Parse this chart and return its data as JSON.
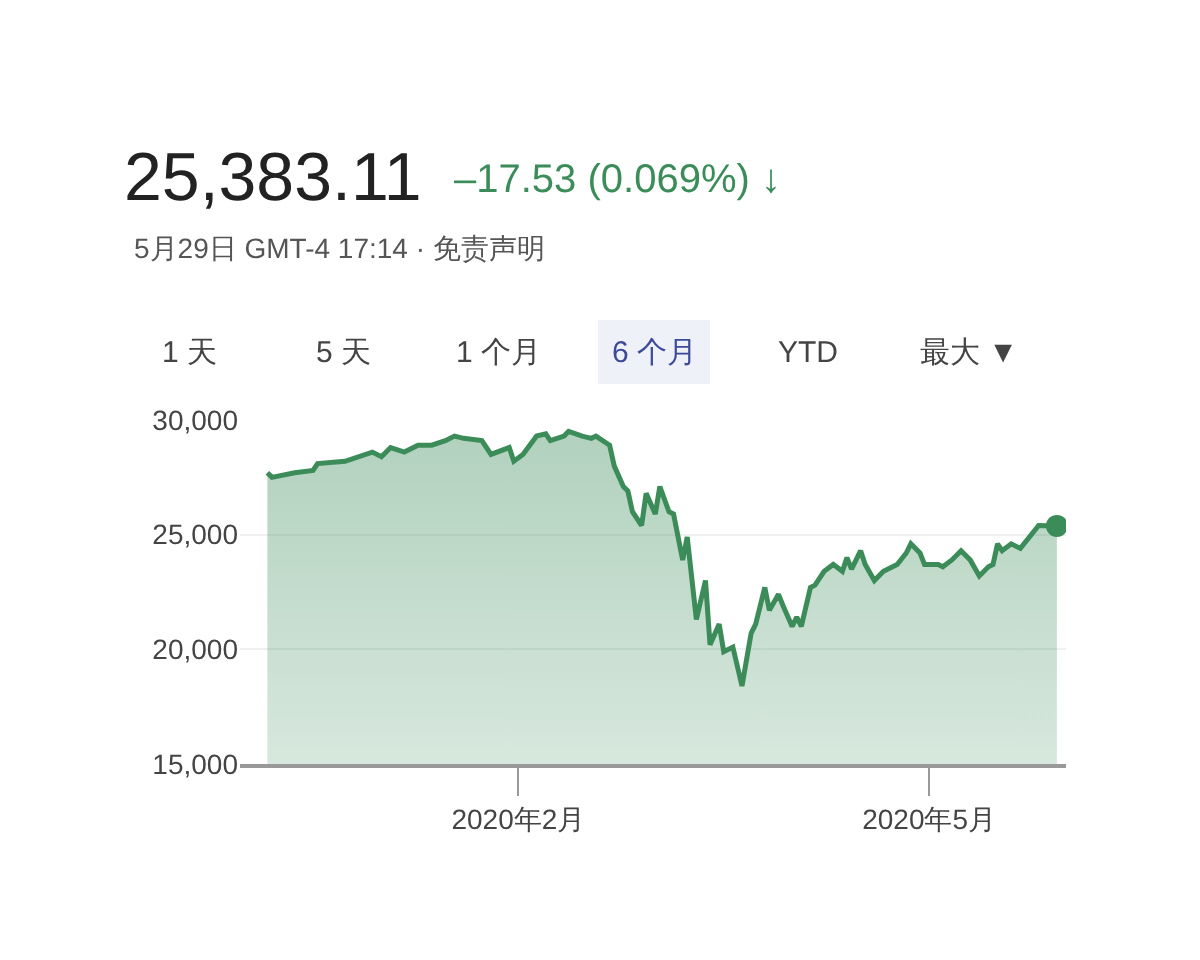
{
  "chart_data": {
    "type": "area",
    "title": "25,383.11",
    "annotations": [
      "–17.53 (0.069%) ↓",
      "5月29日 GMT-4 17:14 · 免责声明",
      "1 天",
      "5 天",
      "1 个月",
      "6 个月",
      "YTD",
      "最大 ▼"
    ],
    "x": [
      "2019-12-08",
      "2019-12-09",
      "2019-12-14",
      "2019-12-18",
      "2019-12-19",
      "2019-12-25",
      "2019-12-31",
      "2020-01-02",
      "2020-01-04",
      "2020-01-07",
      "2020-01-10",
      "2020-01-13",
      "2020-01-16",
      "2020-01-18",
      "2020-01-20",
      "2020-01-24",
      "2020-01-26",
      "2020-01-30",
      "2020-01-31",
      "2020-02-02",
      "2020-02-05",
      "2020-02-07",
      "2020-02-08",
      "2020-02-11",
      "2020-02-12",
      "2020-02-15",
      "2020-02-17",
      "2020-02-18",
      "2020-02-21",
      "2020-02-22",
      "2020-02-24",
      "2020-02-25",
      "2020-02-26",
      "2020-02-28",
      "2020-02-29",
      "2020-03-02",
      "2020-03-03",
      "2020-03-05",
      "2020-03-06",
      "2020-03-08",
      "2020-03-09",
      "2020-03-11",
      "2020-03-13",
      "2020-03-14",
      "2020-03-16",
      "2020-03-17",
      "2020-03-19",
      "2020-03-21",
      "2020-03-23",
      "2020-03-24",
      "2020-03-26",
      "2020-03-27",
      "2020-03-29",
      "2020-03-30",
      "2020-04-01",
      "2020-04-02",
      "2020-04-03",
      "2020-04-05",
      "2020-04-06",
      "2020-04-08",
      "2020-04-10",
      "2020-04-12",
      "2020-04-13",
      "2020-04-14",
      "2020-04-16",
      "2020-04-17",
      "2020-04-19",
      "2020-04-21",
      "2020-04-24",
      "2020-04-26",
      "2020-04-27",
      "2020-04-29",
      "2020-04-30",
      "2020-05-03",
      "2020-05-04",
      "2020-05-06",
      "2020-05-08",
      "2020-05-10",
      "2020-05-12",
      "2020-05-14",
      "2020-05-15",
      "2020-05-16",
      "2020-05-17",
      "2020-05-19",
      "2020-05-21",
      "2020-05-25",
      "2020-05-29"
    ],
    "series": [
      {
        "color": "#3c8c5a",
        "values": [
          27700,
          27500,
          27700,
          27800,
          28100,
          28200,
          28600,
          28400,
          28800,
          28600,
          28900,
          28900,
          29100,
          29300,
          29200,
          29100,
          28500,
          28800,
          28200,
          28500,
          29300,
          29400,
          29100,
          29300,
          29500,
          29300,
          29200,
          29300,
          28900,
          28000,
          27100,
          26900,
          26000,
          25400,
          26800,
          25900,
          27100,
          26000,
          25900,
          23900,
          24900,
          21300,
          23000,
          20200,
          21100,
          19900,
          20100,
          18400,
          20700,
          21100,
          22700,
          21700,
          22400,
          21900,
          21000,
          21400,
          21000,
          22700,
          22800,
          23400,
          23700,
          23400,
          24000,
          23500,
          24300,
          23700,
          23000,
          23400,
          23700,
          24200,
          24600,
          24200,
          23700,
          23700,
          23600,
          23900,
          24300,
          23900,
          23200,
          23600,
          23700,
          24600,
          24300,
          24600,
          24400,
          25400,
          25383.11
        ]
      }
    ],
    "xlim": [
      "2019-12-02",
      "2020-05-31"
    ],
    "xticks": [
      {
        "value": "2020-02-01",
        "label": "2020年2月"
      },
      {
        "value": "2020-05-01",
        "label": "2020年5月"
      }
    ],
    "ylim": [
      15000,
      30000
    ],
    "yticks": [
      {
        "value": 15000,
        "label": "15,000"
      },
      {
        "value": 20000,
        "label": "20,000"
      },
      {
        "value": 25000,
        "label": "25,000"
      },
      {
        "value": 30000,
        "label": "30,000"
      }
    ],
    "grid": "y",
    "legend": false
  }
}
